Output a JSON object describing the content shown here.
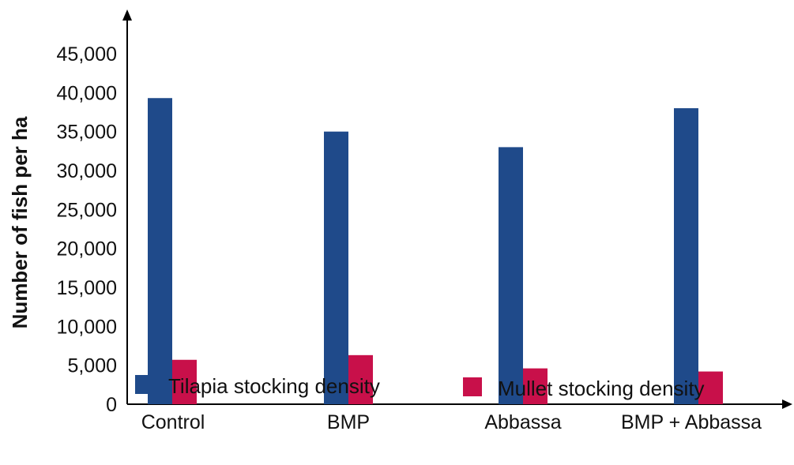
{
  "chart_data": {
    "type": "bar",
    "title": "",
    "xlabel": "",
    "ylabel": "Number of fish per ha",
    "categories": [
      "Control",
      "BMP",
      "Abbassa",
      "BMP + Abbassa"
    ],
    "yticks": [
      "0",
      "5,000",
      "10,000",
      "15,000",
      "20,000",
      "25,000",
      "30,000",
      "35,000",
      "40,000",
      "45,000"
    ],
    "ylim": [
      0,
      45000
    ],
    "grid": false,
    "legend_position": "bottom",
    "series": [
      {
        "name": "Tilapia stocking density",
        "color": "#1f4a8a",
        "values": [
          39300,
          35000,
          33000,
          38000
        ]
      },
      {
        "name": "Mullet stocking density",
        "color": "#c8104a",
        "values": [
          5700,
          6300,
          4600,
          4200
        ]
      }
    ]
  }
}
